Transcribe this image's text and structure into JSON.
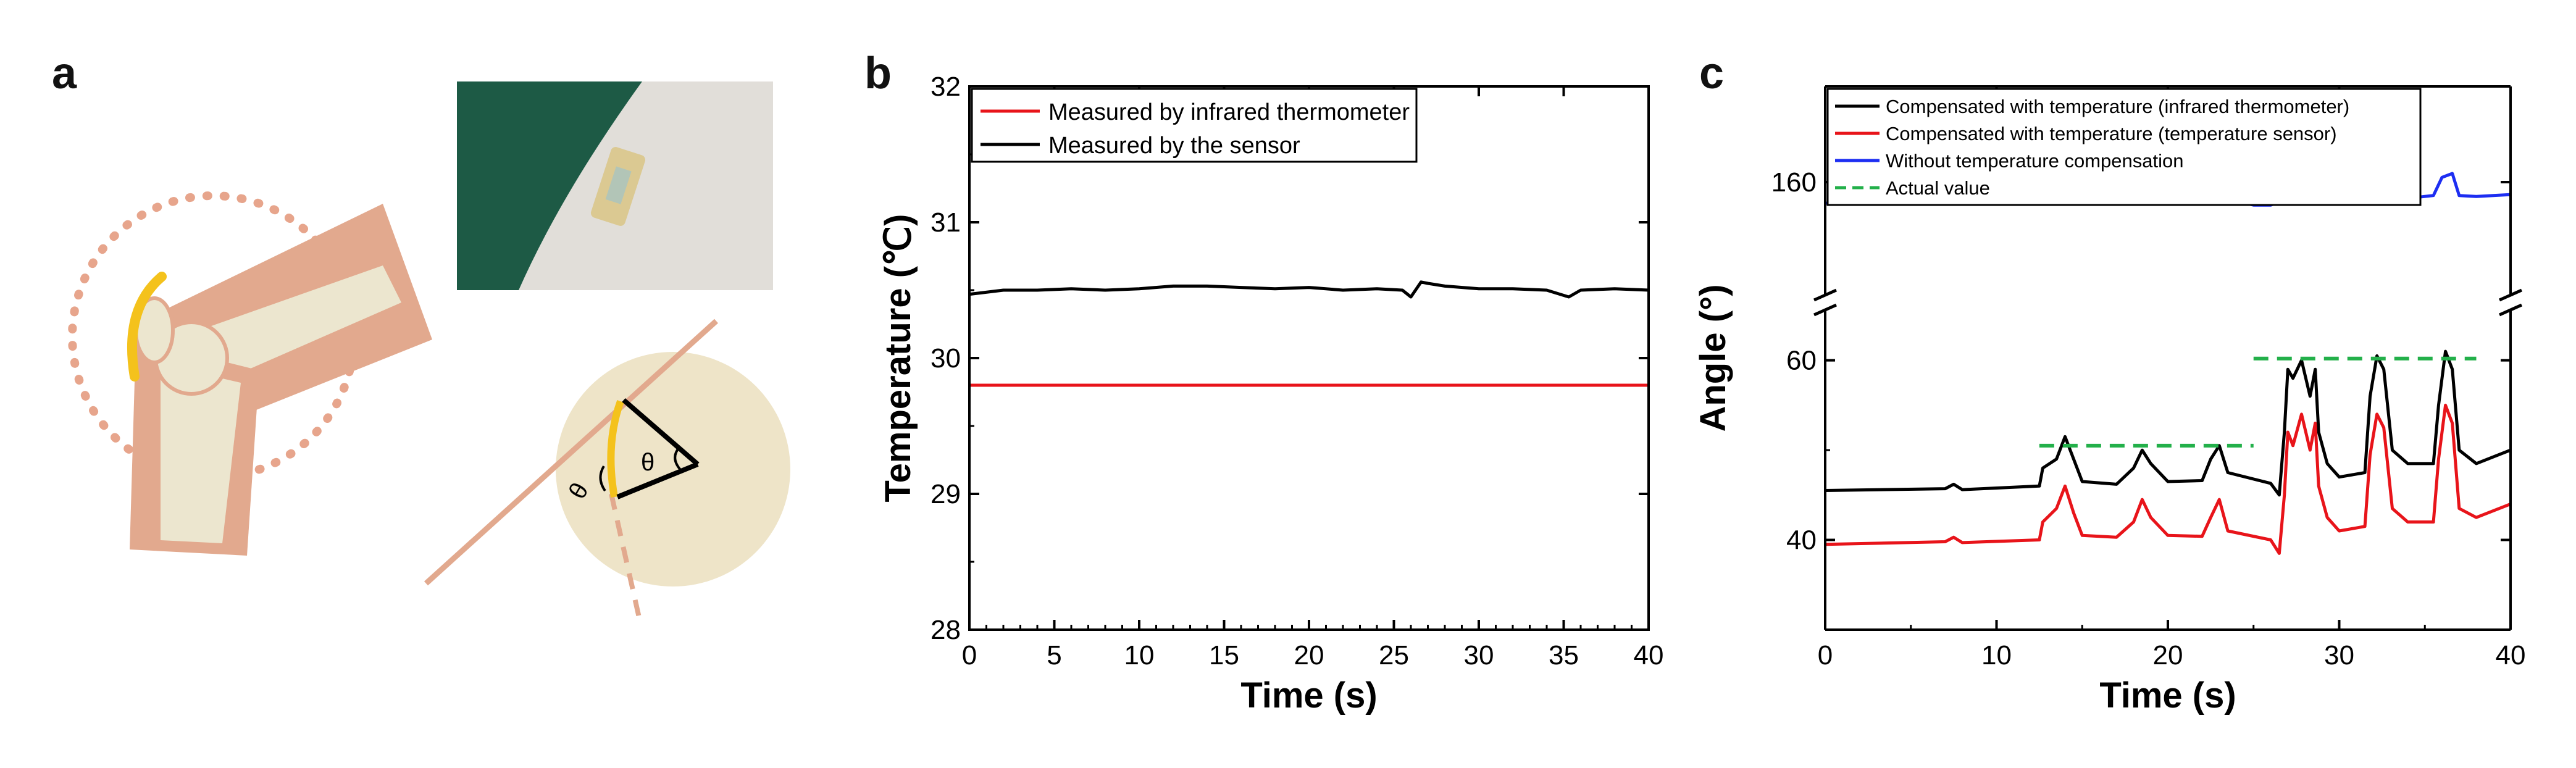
{
  "panels": {
    "a": "a",
    "b": "b",
    "c": "c"
  },
  "schematic": {
    "angle_symbol": "θ"
  },
  "colors": {
    "skin": "#e2a98e",
    "bone": "#ece6cf",
    "sensor": "#f4c21c",
    "circle_fill": "#eee4c8",
    "photo_background": "#1d5a45",
    "photo_skin": "#e1ded9",
    "red": "#e8141a",
    "black": "#000000",
    "blue": "#1d2ef2",
    "green_dashed": "#23b04a"
  },
  "chart_data": [
    {
      "panel": "b",
      "type": "line",
      "xlabel": "Time (s)",
      "ylabel": "Temperature (℃)",
      "xlim": [
        0,
        40
      ],
      "ylim": [
        28,
        32
      ],
      "xticks": [
        0,
        5,
        10,
        15,
        20,
        25,
        30,
        35,
        40
      ],
      "yticks": [
        28,
        29,
        30,
        31,
        32
      ],
      "grid": false,
      "legend_position": "top-left",
      "series": [
        {
          "name": "Measured by infrared thermometer",
          "color": "#e8141a",
          "x": [
            0,
            40
          ],
          "y": [
            29.8,
            29.8
          ]
        },
        {
          "name": "Measured by the sensor",
          "color": "#000000",
          "x": [
            0,
            2,
            4,
            6,
            8,
            10,
            12,
            14,
            16,
            18,
            20,
            22,
            24,
            25.5,
            26,
            26.6,
            27,
            28,
            30,
            32,
            34,
            35.3,
            36,
            38,
            40
          ],
          "y": [
            30.47,
            30.5,
            30.5,
            30.51,
            30.5,
            30.51,
            30.53,
            30.53,
            30.52,
            30.51,
            30.52,
            30.5,
            30.51,
            30.5,
            30.45,
            30.56,
            30.55,
            30.53,
            30.51,
            30.51,
            30.5,
            30.45,
            30.5,
            30.51,
            30.5
          ]
        }
      ]
    },
    {
      "panel": "c",
      "type": "line",
      "xlabel": "Time (s)",
      "ylabel": "Angle (°)",
      "xlim": [
        0,
        40
      ],
      "xticks": [
        0,
        10,
        20,
        30,
        40
      ],
      "broken_y_axis": {
        "lower_range": [
          30,
          63
        ],
        "upper_range": [
          150,
          170
        ]
      },
      "yticks": [
        40,
        60,
        160
      ],
      "grid": false,
      "legend_position": "top-left",
      "series": [
        {
          "name": "Compensated with temperature (infrared thermometer)",
          "color": "#000000",
          "x": [
            0,
            7,
            7.5,
            8,
            12.5,
            12.7,
            13.5,
            14,
            14.5,
            15,
            17,
            18,
            18.5,
            19,
            20,
            22,
            22.5,
            23,
            23.5,
            26,
            26.5,
            26.8,
            27,
            27.3,
            27.8,
            28.3,
            28.6,
            28.8,
            29.3,
            30,
            31.5,
            31.8,
            32.2,
            32.6,
            33.1,
            34,
            35.5,
            35.8,
            36.2,
            36.6,
            37,
            38,
            40
          ],
          "y": [
            45.5,
            45.7,
            46.2,
            45.6,
            46,
            48,
            49,
            51.5,
            49,
            46.5,
            46.2,
            48,
            50,
            48.5,
            46.5,
            46.6,
            49,
            50.5,
            47.5,
            46.3,
            45,
            52,
            59,
            58,
            60,
            56,
            59,
            52,
            48.5,
            47,
            47.5,
            56,
            60.5,
            59,
            50,
            48.5,
            48.5,
            55,
            61,
            59,
            50,
            48.5,
            50
          ]
        },
        {
          "name": "Compensated with temperature (temperature sensor)",
          "color": "#e8141a",
          "x": [
            0,
            7,
            7.5,
            8,
            12.5,
            12.7,
            13.5,
            14,
            14.5,
            15,
            17,
            18,
            18.5,
            19,
            20,
            22,
            22.5,
            23,
            23.5,
            26,
            26.5,
            26.8,
            27,
            27.3,
            27.8,
            28.3,
            28.6,
            28.8,
            29.3,
            30,
            31.5,
            31.8,
            32.2,
            32.6,
            33.1,
            34,
            35.5,
            35.8,
            36.2,
            36.6,
            37,
            38,
            40
          ],
          "y": [
            39.5,
            39.8,
            40.3,
            39.7,
            40,
            42,
            43.5,
            46,
            43,
            40.5,
            40.3,
            42,
            44.5,
            42.5,
            40.5,
            40.4,
            42.5,
            44.5,
            41,
            40,
            38.5,
            45,
            52,
            50.5,
            54,
            50,
            53,
            46,
            42.5,
            41,
            41.5,
            49.5,
            54,
            52.5,
            43.5,
            42,
            42,
            49,
            55,
            53,
            43.5,
            42.5,
            44
          ]
        },
        {
          "name": "Without temperature compensation",
          "color": "#1d2ef2",
          "x": [
            0,
            7,
            8,
            12,
            13,
            14,
            15,
            17,
            18,
            18.5,
            19,
            20,
            22,
            22.5,
            23,
            23.5,
            25,
            26,
            27,
            27.5,
            28.5,
            29.5,
            30,
            31,
            31.5,
            32,
            33,
            34,
            35.5,
            36,
            36.6,
            37,
            38,
            40
          ],
          "y": [
            157.8,
            157.9,
            158,
            157.9,
            158.2,
            159.4,
            158.4,
            158,
            158.3,
            158.9,
            158.5,
            158,
            157.8,
            158.4,
            158.9,
            158.2,
            157.6,
            157.6,
            158.2,
            160.5,
            160.9,
            158.3,
            158.2,
            158.4,
            160,
            160.6,
            158.4,
            158.3,
            158.6,
            160.5,
            160.9,
            158.6,
            158.5,
            158.7
          ]
        },
        {
          "name": "Actual value",
          "color": "#23b04a",
          "style": "dashed",
          "segments": [
            {
              "x": [
                12.5,
                25
              ],
              "y": [
                50.5,
                50.5
              ]
            },
            {
              "x": [
                25,
                38
              ],
              "y": [
                60.2,
                60.2
              ]
            }
          ]
        }
      ]
    }
  ]
}
